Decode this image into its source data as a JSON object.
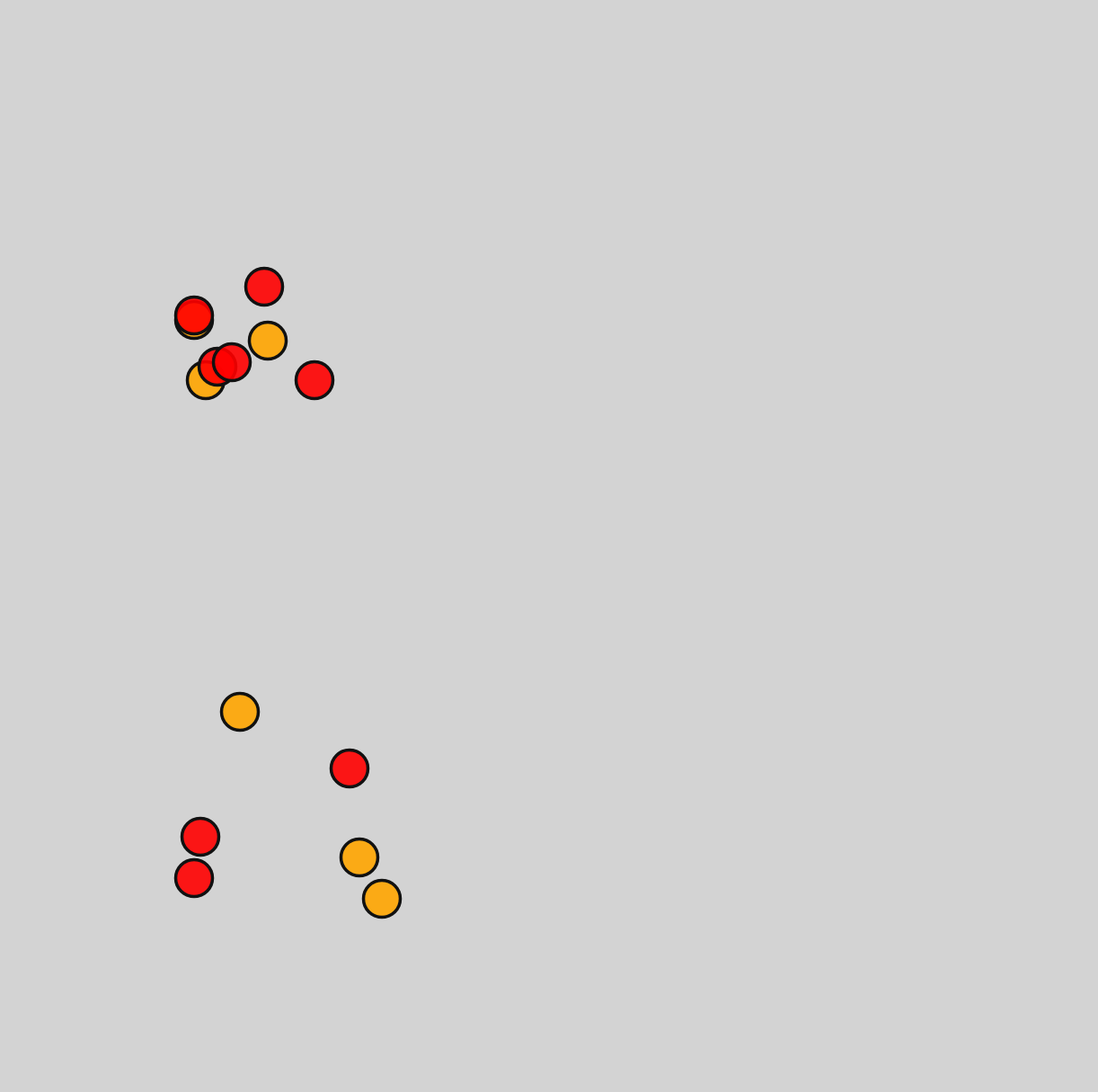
{
  "colors": {
    "background": "#d3d3d3",
    "outline": "#111111",
    "red": "#ff0000",
    "orange": "#ffa500"
  },
  "discs": [
    {
      "color": "orange"
    },
    {
      "color": "red"
    },
    {
      "color": "red"
    },
    {
      "color": "orange"
    },
    {
      "color": "orange"
    },
    {
      "color": "red"
    },
    {
      "color": "red"
    },
    {
      "color": "red"
    },
    {
      "color": "orange"
    },
    {
      "color": "red"
    },
    {
      "color": "red"
    },
    {
      "color": "red"
    },
    {
      "color": "orange"
    },
    {
      "color": "orange"
    }
  ]
}
